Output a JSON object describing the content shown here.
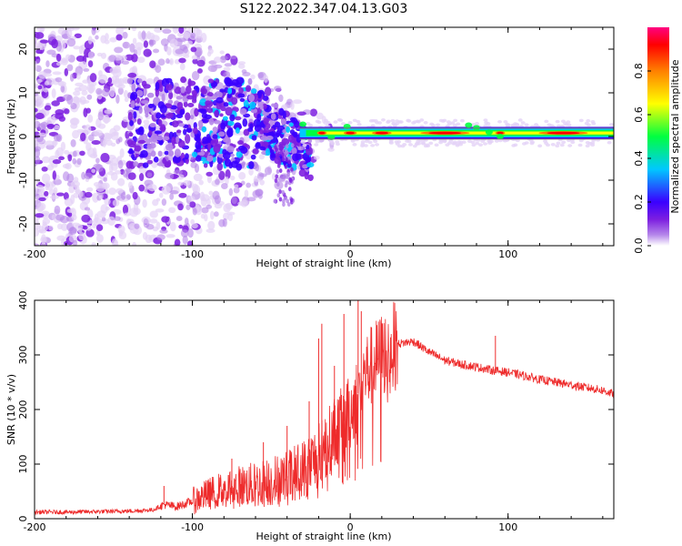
{
  "title": "S122.2022.347.04.13.G03",
  "chart_data": [
    {
      "type": "heatmap",
      "xlabel": "Height of straight line (km)",
      "ylabel": "Frequency (Hz)",
      "xlim": [
        -200,
        167
      ],
      "ylim": [
        -25,
        25
      ],
      "xticks": [
        -200,
        -100,
        0,
        100
      ],
      "yticks": [
        -20,
        -10,
        0,
        10,
        20
      ],
      "colorbar": {
        "label": "Normalized spectral amplitude",
        "range": [
          0,
          1
        ],
        "ticks": [
          0.0,
          0.2,
          0.4,
          0.6,
          0.8
        ]
      },
      "signal_band_hz": 0.8,
      "bracket_hz": [
        -0.6,
        1.9
      ],
      "colors": [
        "#ffffff",
        "#e4d2f6",
        "#b586ea",
        "#7d1fe0",
        "#3a00ff",
        "#00c8ff",
        "#00ff40",
        "#ffff00",
        "#ff8000",
        "#ff0000",
        "#ff0080"
      ]
    },
    {
      "type": "line",
      "xlabel": "Height of straight line (km)",
      "ylabel": "SNR (10 * v/v)",
      "xlim": [
        -200,
        167
      ],
      "ylim": [
        0,
        400
      ],
      "xticks": [
        -200,
        -100,
        0,
        100
      ],
      "yticks": [
        0,
        100,
        200,
        300,
        400
      ],
      "color": "#ee2b2b",
      "series": [
        {
          "x": [
            -200,
            -180,
            -160,
            -140,
            -125,
            -118,
            -110,
            -100,
            -90,
            -80,
            -70,
            -60,
            -50,
            -40,
            -30,
            -20,
            -15,
            -10,
            -5,
            0,
            5,
            10,
            20,
            30,
            40,
            50,
            60,
            70,
            80,
            90,
            100,
            110,
            120,
            130,
            140,
            150,
            160,
            167
          ],
          "y": [
            12,
            12,
            13,
            14,
            16,
            26,
            22,
            32,
            45,
            55,
            60,
            62,
            68,
            75,
            90,
            115,
            135,
            160,
            175,
            195,
            230,
            270,
            300,
            320,
            325,
            305,
            290,
            283,
            278,
            272,
            268,
            262,
            255,
            250,
            245,
            240,
            235,
            228
          ]
        }
      ],
      "spikes": [
        {
          "x": -118,
          "y": 60
        },
        {
          "x": -75,
          "y": 110
        },
        {
          "x": -55,
          "y": 140
        },
        {
          "x": -40,
          "y": 170
        },
        {
          "x": -26,
          "y": 215
        },
        {
          "x": -20,
          "y": 330
        },
        {
          "x": -18,
          "y": 357
        },
        {
          "x": -10,
          "y": 280
        },
        {
          "x": -4,
          "y": 375
        },
        {
          "x": 5,
          "y": 400
        },
        {
          "x": 7,
          "y": 380
        },
        {
          "x": 92,
          "y": 335
        }
      ]
    }
  ]
}
